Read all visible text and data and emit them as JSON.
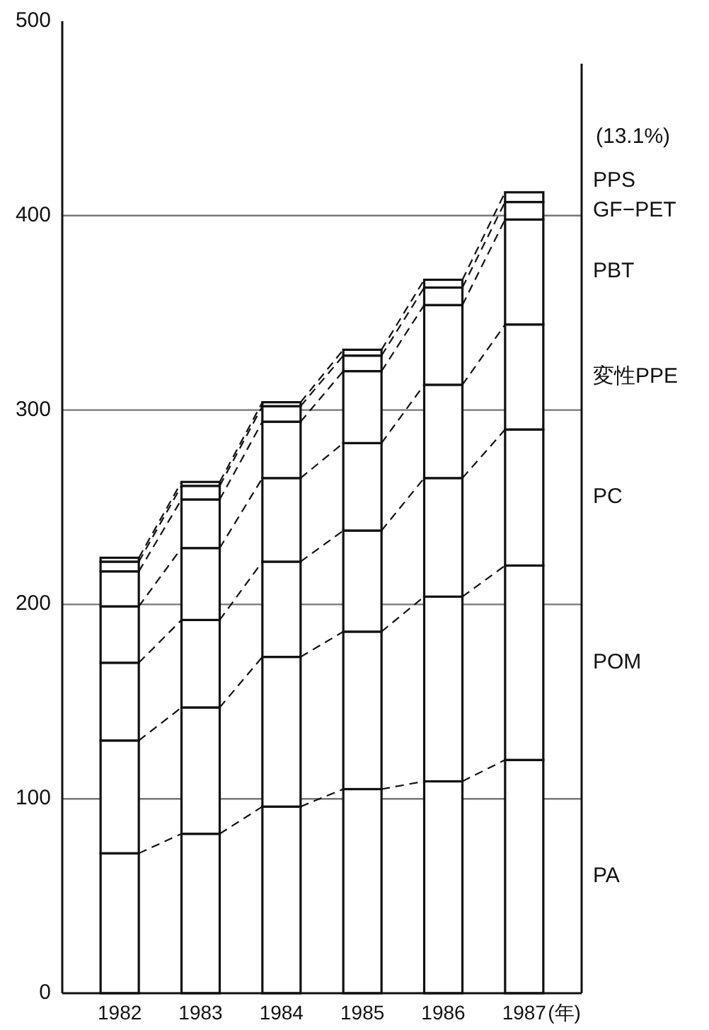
{
  "chart_data": {
    "type": "bar",
    "stacked": true,
    "categories": [
      "1982",
      "1983",
      "1984",
      "1985",
      "1986",
      "1987"
    ],
    "xlabel": "(年)",
    "ylim": [
      0,
      500
    ],
    "yticks": [
      0,
      100,
      200,
      300,
      400,
      500
    ],
    "grid": "y",
    "legend": false,
    "annotations": [
      "(13.1%)"
    ],
    "series": [
      {
        "name": "PA",
        "color": "#ffffff",
        "values": [
          72,
          82,
          96,
          105,
          109,
          120
        ]
      },
      {
        "name": "POM",
        "color": "#ffffff",
        "values": [
          58,
          65,
          77,
          81,
          95,
          100
        ]
      },
      {
        "name": "PC",
        "color": "#ffffff",
        "values": [
          40,
          45,
          49,
          52,
          61,
          70
        ]
      },
      {
        "name": "変性PPE",
        "color": "#ffffff",
        "values": [
          29,
          37,
          43,
          45,
          48,
          54
        ]
      },
      {
        "name": "PBT",
        "color": "#ffffff",
        "values": [
          18,
          25,
          29,
          37,
          41,
          54
        ]
      },
      {
        "name": "GF−PET",
        "color": "#ffffff",
        "values": [
          5,
          7,
          8,
          8,
          9,
          9
        ]
      },
      {
        "name": "PPS",
        "color": "#ffffff",
        "values": [
          2,
          2,
          2,
          3,
          4,
          5
        ]
      }
    ]
  }
}
